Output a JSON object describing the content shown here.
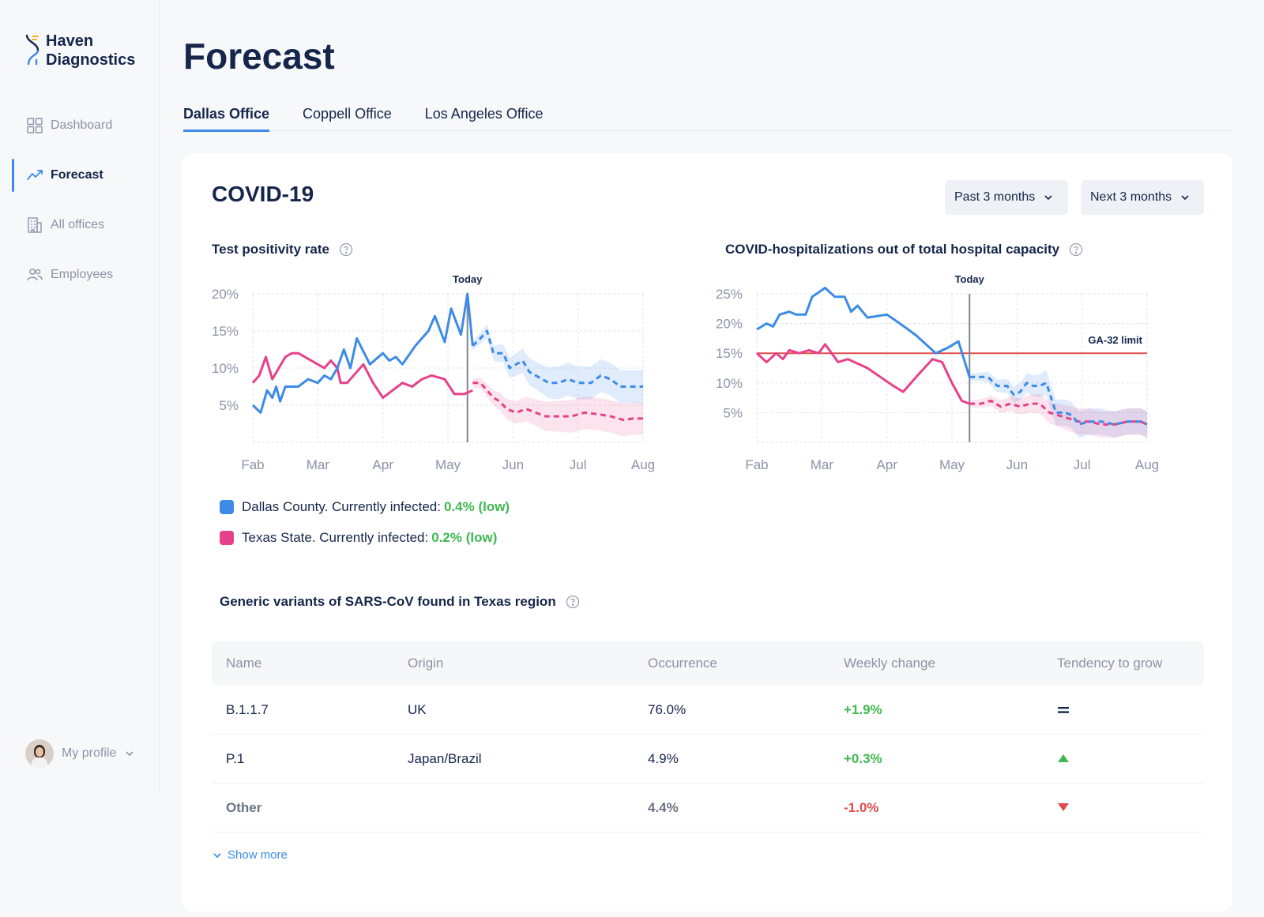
{
  "app": {
    "brand_line1": "Haven",
    "brand_line2": "Diagnostics"
  },
  "sidebar": {
    "items": [
      {
        "label": "Dashboard",
        "icon": "dashboard-icon"
      },
      {
        "label": "Forecast",
        "icon": "forecast-icon"
      },
      {
        "label": "All offices",
        "icon": "building-icon"
      },
      {
        "label": "Employees",
        "icon": "users-icon"
      }
    ],
    "profile_label": "My profile"
  },
  "page": {
    "title": "Forecast"
  },
  "tabs": [
    "Dallas Office",
    "Coppell Office",
    "Los Angeles Office"
  ],
  "card": {
    "title": "COVID-19",
    "past_dropdown": "Past 3 months",
    "next_dropdown": "Next 3 months"
  },
  "legend": {
    "county_text": "Dallas County. Currently infected:",
    "county_value": "0.4% (low)",
    "state_text": "Texas State. Currently infected:",
    "state_value": "0.2% (low)"
  },
  "colors": {
    "blue": "#3d8be6",
    "pink": "#e6418a",
    "red": "#e14b4b",
    "green": "#3fb950"
  },
  "chart_data": [
    {
      "type": "line",
      "title": "Test positivity rate",
      "categories": [
        "Fab",
        "Mar",
        "Apr",
        "May",
        "Jun",
        "Jul",
        "Aug"
      ],
      "y_ticks": [
        "20%",
        "15%",
        "10%",
        "5%"
      ],
      "ylim": [
        0,
        20
      ],
      "today_label": "Today",
      "today_x": 3.3,
      "series": [
        {
          "name": "Dallas County",
          "color": "blue",
          "actual": [
            [
              0,
              5
            ],
            [
              0.12,
              4
            ],
            [
              0.22,
              7
            ],
            [
              0.3,
              6
            ],
            [
              0.36,
              7.5
            ],
            [
              0.42,
              5.5
            ],
            [
              0.5,
              7.5
            ],
            [
              0.7,
              7.5
            ],
            [
              0.85,
              8.5
            ],
            [
              1,
              8
            ],
            [
              1.1,
              9
            ],
            [
              1.2,
              8.5
            ],
            [
              1.3,
              10
            ],
            [
              1.4,
              12.5
            ],
            [
              1.5,
              10
            ],
            [
              1.6,
              14
            ],
            [
              1.8,
              10.5
            ],
            [
              2,
              12
            ],
            [
              2.1,
              11
            ],
            [
              2.2,
              11.5
            ],
            [
              2.3,
              10.5
            ],
            [
              2.5,
              13
            ],
            [
              2.7,
              15
            ],
            [
              2.8,
              17
            ],
            [
              2.95,
              13.5
            ],
            [
              3.05,
              18
            ],
            [
              3.2,
              14.5
            ],
            [
              3.3,
              20
            ],
            [
              3.38,
              13
            ]
          ],
          "forecast": [
            [
              3.38,
              13
            ],
            [
              3.5,
              14
            ],
            [
              3.6,
              15
            ],
            [
              3.7,
              12
            ],
            [
              3.85,
              12
            ],
            [
              3.95,
              10
            ],
            [
              4.05,
              10.5
            ],
            [
              4.15,
              11
            ],
            [
              4.25,
              9.5
            ],
            [
              4.45,
              8.5
            ],
            [
              4.55,
              8
            ],
            [
              4.7,
              8
            ],
            [
              4.85,
              8.5
            ],
            [
              5,
              8
            ],
            [
              5.2,
              8
            ],
            [
              5.35,
              9
            ],
            [
              5.5,
              8.5
            ],
            [
              5.65,
              7.5
            ],
            [
              5.85,
              7.5
            ],
            [
              6,
              7.5
            ]
          ]
        },
        {
          "name": "Texas State",
          "color": "pink",
          "actual": [
            [
              0,
              8
            ],
            [
              0.1,
              9
            ],
            [
              0.2,
              11.5
            ],
            [
              0.3,
              8.5
            ],
            [
              0.4,
              10
            ],
            [
              0.5,
              11.5
            ],
            [
              0.6,
              12
            ],
            [
              0.7,
              12
            ],
            [
              0.8,
              11.5
            ],
            [
              0.9,
              11
            ],
            [
              1,
              10.5
            ],
            [
              1.1,
              10
            ],
            [
              1.2,
              11
            ],
            [
              1.3,
              10
            ],
            [
              1.35,
              8
            ],
            [
              1.45,
              8
            ],
            [
              1.6,
              9.5
            ],
            [
              1.7,
              10.5
            ],
            [
              1.85,
              8
            ],
            [
              2,
              6
            ],
            [
              2.15,
              7
            ],
            [
              2.3,
              8
            ],
            [
              2.45,
              7.5
            ],
            [
              2.6,
              8.5
            ],
            [
              2.75,
              9
            ],
            [
              2.95,
              8.5
            ],
            [
              3.1,
              6.5
            ],
            [
              3.25,
              6.5
            ],
            [
              3.38,
              7
            ]
          ],
          "forecast": [
            [
              3.38,
              8
            ],
            [
              3.5,
              8
            ],
            [
              3.6,
              7
            ],
            [
              3.7,
              6
            ],
            [
              3.8,
              5.5
            ],
            [
              3.9,
              4.5
            ],
            [
              4.05,
              4
            ],
            [
              4.2,
              4.5
            ],
            [
              4.35,
              4
            ],
            [
              4.5,
              3.5
            ],
            [
              4.7,
              3.5
            ],
            [
              4.9,
              3.5
            ],
            [
              5.1,
              4
            ],
            [
              5.3,
              3.8
            ],
            [
              5.5,
              3.5
            ],
            [
              5.7,
              3
            ],
            [
              5.85,
              3.2
            ],
            [
              6,
              3.2
            ]
          ]
        }
      ]
    },
    {
      "type": "line",
      "title": "COVID-hospitalizations out of total hospital capacity",
      "categories": [
        "Fab",
        "Mar",
        "Apr",
        "May",
        "Jun",
        "Jul",
        "Aug"
      ],
      "y_ticks": [
        "25%",
        "20%",
        "15%",
        "10%",
        "5%"
      ],
      "ylim": [
        0,
        25
      ],
      "today_label": "Today",
      "today_x": 3.27,
      "limit": {
        "label": "GA-32 limit",
        "value": 15
      },
      "series": [
        {
          "name": "Dallas County",
          "color": "blue",
          "actual": [
            [
              0,
              19
            ],
            [
              0.15,
              20
            ],
            [
              0.25,
              19.5
            ],
            [
              0.35,
              21.5
            ],
            [
              0.5,
              22
            ],
            [
              0.6,
              21.5
            ],
            [
              0.75,
              21.5
            ],
            [
              0.85,
              24.5
            ],
            [
              1.05,
              26
            ],
            [
              1.2,
              24.5
            ],
            [
              1.35,
              24.5
            ],
            [
              1.45,
              22
            ],
            [
              1.55,
              23
            ],
            [
              1.7,
              21
            ],
            [
              2,
              21.5
            ],
            [
              2.2,
              20
            ],
            [
              2.45,
              18
            ],
            [
              2.75,
              15
            ],
            [
              2.95,
              16
            ],
            [
              3.1,
              17
            ],
            [
              3.27,
              11
            ]
          ],
          "forecast": [
            [
              3.27,
              11
            ],
            [
              3.45,
              11
            ],
            [
              3.55,
              11
            ],
            [
              3.7,
              9.5
            ],
            [
              3.85,
              9.5
            ],
            [
              3.95,
              8
            ],
            [
              4.05,
              8.5
            ],
            [
              4.15,
              10
            ],
            [
              4.25,
              9.5
            ],
            [
              4.35,
              9.5
            ],
            [
              4.45,
              10
            ],
            [
              4.6,
              5
            ],
            [
              4.75,
              5
            ],
            [
              4.85,
              4.5
            ],
            [
              4.95,
              3
            ],
            [
              5.1,
              3.5
            ],
            [
              5.3,
              3.5
            ],
            [
              5.5,
              3
            ],
            [
              5.7,
              3.5
            ],
            [
              5.9,
              3.5
            ],
            [
              6,
              3
            ]
          ]
        },
        {
          "name": "Texas State",
          "color": "pink",
          "actual": [
            [
              0,
              15
            ],
            [
              0.15,
              13.5
            ],
            [
              0.3,
              15
            ],
            [
              0.4,
              14
            ],
            [
              0.5,
              15.5
            ],
            [
              0.65,
              15
            ],
            [
              0.8,
              15.5
            ],
            [
              0.95,
              15
            ],
            [
              1.05,
              16.5
            ],
            [
              1.15,
              15
            ],
            [
              1.25,
              13.5
            ],
            [
              1.4,
              14
            ],
            [
              1.5,
              13.5
            ],
            [
              1.7,
              12.5
            ],
            [
              1.9,
              11
            ],
            [
              2.1,
              9.5
            ],
            [
              2.25,
              8.5
            ],
            [
              2.45,
              11
            ],
            [
              2.7,
              14
            ],
            [
              2.85,
              13.5
            ],
            [
              3,
              10
            ],
            [
              3.15,
              7
            ],
            [
              3.27,
              6.5
            ]
          ],
          "forecast": [
            [
              3.27,
              6.5
            ],
            [
              3.45,
              6.5
            ],
            [
              3.6,
              7
            ],
            [
              3.75,
              6
            ],
            [
              3.9,
              6.5
            ],
            [
              4.05,
              6
            ],
            [
              4.2,
              6.5
            ],
            [
              4.35,
              6.5
            ],
            [
              4.5,
              5
            ],
            [
              4.65,
              4.5
            ],
            [
              4.8,
              4
            ],
            [
              4.95,
              3.5
            ],
            [
              5.1,
              3.5
            ],
            [
              5.3,
              3
            ],
            [
              5.5,
              3
            ],
            [
              5.7,
              3.5
            ],
            [
              5.9,
              3.5
            ],
            [
              6,
              3
            ]
          ]
        }
      ]
    }
  ],
  "variants": {
    "title": "Generic variants of SARS-CoV found in Texas region",
    "columns": [
      "Name",
      "Origin",
      "Occurrence",
      "Weekly change",
      "Tendency to grow"
    ],
    "rows": [
      {
        "name": "B.1.1.7",
        "origin": "UK",
        "occurrence": "76.0%",
        "change": "+1.9%",
        "tendency": "equal-icon"
      },
      {
        "name": "P.1",
        "origin": "Japan/Brazil",
        "occurrence": "4.9%",
        "change": "+0.3%",
        "tendency": "arrow-up-icon"
      },
      {
        "name": "Other",
        "origin": "",
        "occurrence": "4.4%",
        "change": "-1.0%",
        "tendency": "arrow-down-icon"
      }
    ],
    "show_more": "Show more"
  }
}
